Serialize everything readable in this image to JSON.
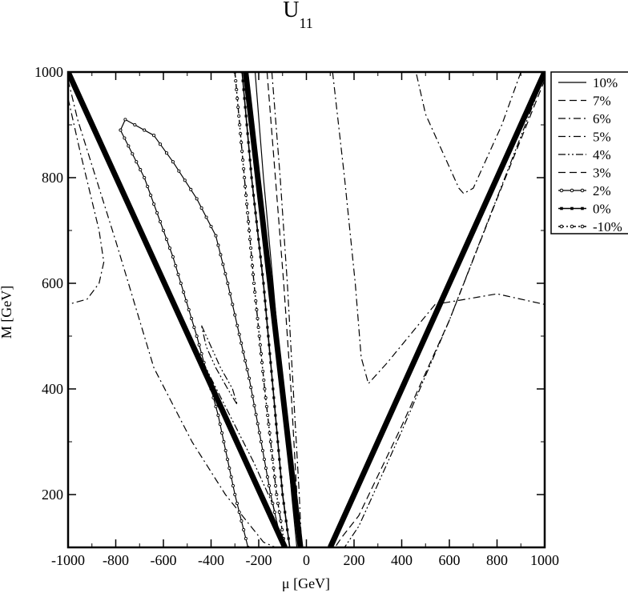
{
  "chart_data": {
    "type": "line",
    "title": "U",
    "title_subscript": "11",
    "xlabel": "μ [GeV]",
    "ylabel": "M [GeV]",
    "xlim": [
      -1000,
      1000
    ],
    "ylim": [
      100,
      1000
    ],
    "xticks": [
      -1000,
      -800,
      -600,
      -400,
      -200,
      0,
      200,
      400,
      600,
      800,
      1000
    ],
    "yticks": [
      200,
      400,
      600,
      800,
      1000
    ],
    "xtick_labels": [
      "-1000",
      "-800",
      "-600",
      "-400",
      "-200",
      "0",
      "200",
      "400",
      "600",
      "800",
      "1000"
    ],
    "ytick_labels": [
      "200",
      "400",
      "600",
      "800",
      "1000"
    ],
    "grid": false,
    "legend_position": "right-top",
    "series": [
      {
        "name": "10%",
        "style": "solid",
        "segments": [
          [
            [
              -215,
              1000
            ],
            [
              -180,
              800
            ],
            [
              -140,
              600
            ],
            [
              -100,
              400
            ],
            [
              -62,
              200
            ],
            [
              -40,
              100
            ]
          ]
        ]
      },
      {
        "name": "7%",
        "style": "dashed",
        "segments": [
          [
            [
              -165,
              1000
            ],
            [
              -130,
              800
            ],
            [
              -95,
              600
            ],
            [
              -65,
              400
            ],
            [
              -40,
              200
            ],
            [
              -25,
              100
            ]
          ]
        ]
      },
      {
        "name": "6%",
        "style": "dashdot",
        "segments": [
          [
            [
              -1000,
              950
            ],
            [
              -950,
              850
            ],
            [
              -870,
              700
            ],
            [
              -850,
              640
            ],
            [
              -870,
              600
            ],
            [
              -920,
              570
            ],
            [
              -1000,
              560
            ]
          ],
          [
            [
              -145,
              1000
            ],
            [
              -110,
              800
            ],
            [
              -80,
              600
            ],
            [
              -55,
              400
            ],
            [
              -30,
              200
            ],
            [
              -20,
              100
            ]
          ],
          [
            [
              110,
              1000
            ],
            [
              160,
              800
            ],
            [
              205,
              600
            ],
            [
              230,
              460
            ],
            [
              260,
              410
            ],
            [
              340,
              450
            ],
            [
              540,
              560
            ],
            [
              800,
              580
            ],
            [
              1000,
              560
            ]
          ],
          [
            [
              900,
              1000
            ],
            [
              820,
              900
            ],
            [
              700,
              780
            ],
            [
              660,
              770
            ],
            [
              640,
              780
            ],
            [
              560,
              860
            ],
            [
              500,
              920
            ],
            [
              460,
              1000
            ]
          ]
        ]
      },
      {
        "name": "5%",
        "style": "dashdot",
        "segments": [
          [
            [
              -1000,
              985
            ],
            [
              -960,
              910
            ],
            [
              -800,
              680
            ],
            [
              -640,
              440
            ],
            [
              -480,
              300
            ],
            [
              -340,
              200
            ],
            [
              -180,
              110
            ],
            [
              -130,
              100
            ]
          ]
        ]
      },
      {
        "name": "4%",
        "style": "dashdotdot",
        "segments": [
          [
            [
              -1000,
              995
            ],
            [
              -700,
              700
            ],
            [
              -400,
              420
            ],
            [
              -220,
              260
            ],
            [
              -140,
              180
            ],
            [
              -100,
              100
            ]
          ],
          [
            [
              1000,
              995
            ],
            [
              850,
              820
            ],
            [
              600,
              530
            ],
            [
              400,
              320
            ],
            [
              260,
              180
            ],
            [
              220,
              140
            ],
            [
              160,
              100
            ]
          ],
          [
            [
              -440,
              520
            ],
            [
              -400,
              480
            ],
            [
              -360,
              440
            ],
            [
              -310,
              400
            ],
            [
              -290,
              370
            ],
            [
              -330,
              400
            ],
            [
              -380,
              440
            ],
            [
              -420,
              480
            ],
            [
              -440,
              520
            ]
          ]
        ]
      },
      {
        "name": "3%",
        "style": "dashed",
        "segments": [
          [
            [
              1000,
              985
            ],
            [
              800,
              760
            ],
            [
              600,
              530
            ],
            [
              400,
              330
            ],
            [
              220,
              160
            ],
            [
              150,
              120
            ],
            [
              120,
              100
            ]
          ]
        ]
      },
      {
        "name": "2%",
        "style": "line-circle",
        "segments": [
          [
            [
              -245,
              100
            ],
            [
              -300,
              200
            ],
            [
              -370,
              350
            ],
            [
              -460,
              500
            ],
            [
              -560,
              650
            ],
            [
              -680,
              800
            ],
            [
              -780,
              890
            ],
            [
              -760,
              910
            ],
            [
              -720,
              900
            ],
            [
              -640,
              880
            ],
            [
              -560,
              830
            ],
            [
              -460,
              760
            ],
            [
              -380,
              690
            ],
            [
              -330,
              600
            ],
            [
              -290,
              520
            ],
            [
              -240,
              420
            ],
            [
              -190,
              300
            ],
            [
              -150,
              200
            ],
            [
              -125,
              150
            ]
          ]
        ]
      },
      {
        "name": "0%",
        "style": "line-square",
        "segments": [
          [
            [
              -270,
              1000
            ],
            [
              -230,
              800
            ],
            [
              -180,
              600
            ],
            [
              -140,
              400
            ],
            [
              -100,
              200
            ],
            [
              -70,
              100
            ]
          ]
        ]
      },
      {
        "name": "-10%",
        "style": "dashdot-circle",
        "segments": [
          [
            [
              -300,
              1000
            ],
            [
              -260,
              800
            ],
            [
              -220,
              600
            ],
            [
              -175,
              400
            ],
            [
              -125,
              200
            ],
            [
              -90,
              100
            ]
          ]
        ]
      },
      {
        "name": "",
        "style": "thick-bound",
        "segments": [
          [
            [
              -1000,
              1000
            ],
            [
              -90,
              100
            ]
          ],
          [
            [
              -255,
              1000
            ],
            [
              -25,
              100
            ]
          ],
          [
            [
              1000,
              1000
            ],
            [
              100,
              100
            ]
          ]
        ]
      }
    ]
  }
}
